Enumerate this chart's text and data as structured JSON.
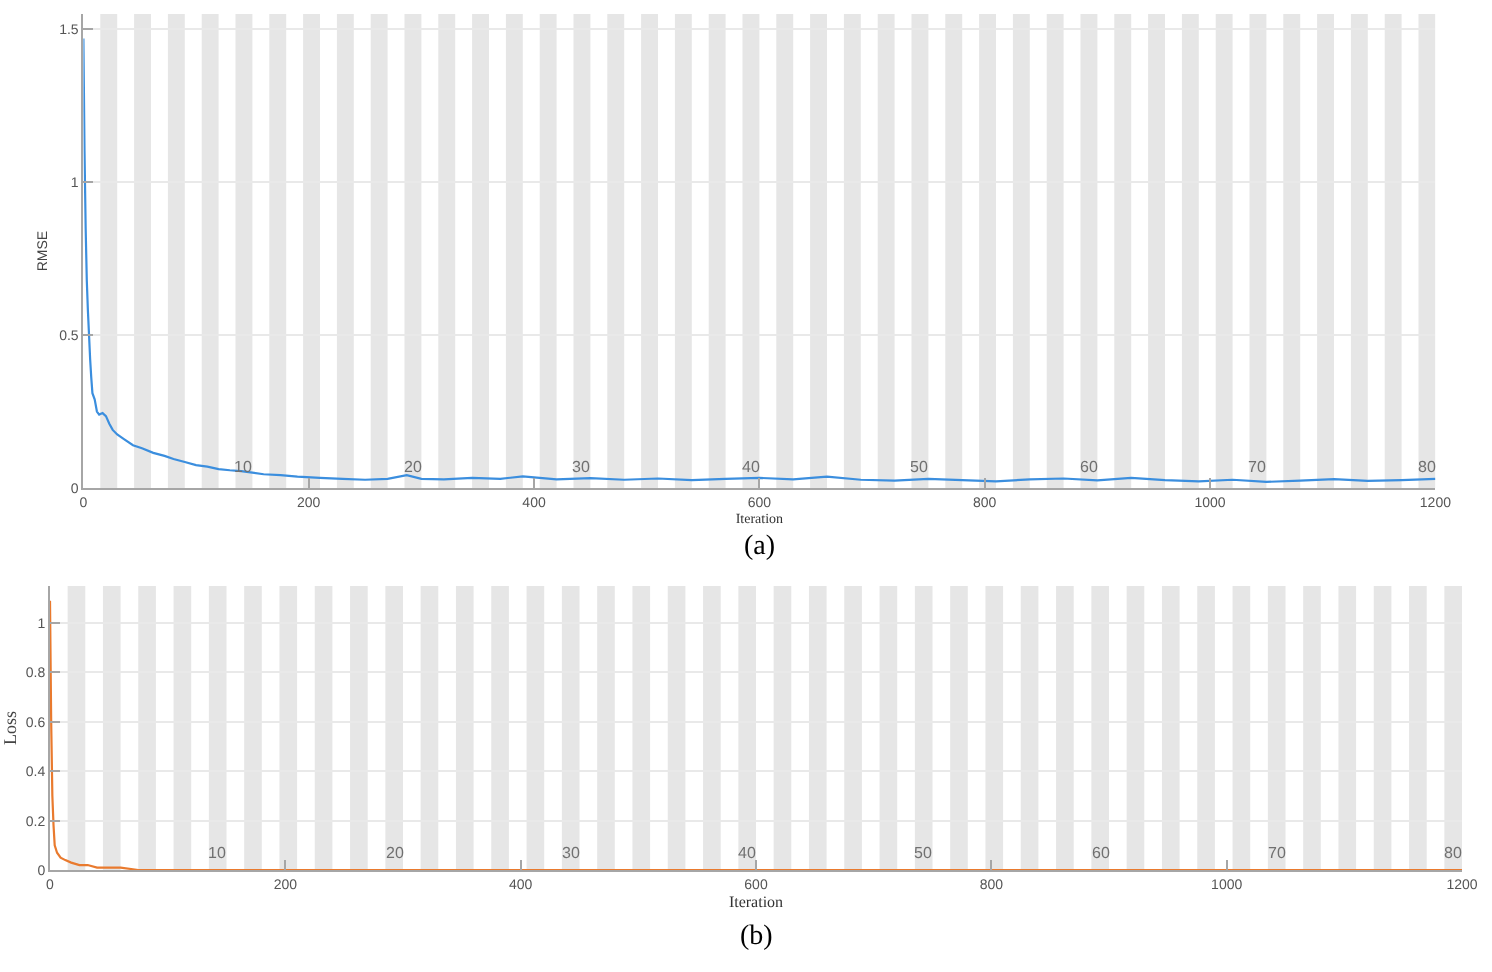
{
  "chart_data": [
    {
      "type": "line",
      "xlabel": "Iteration",
      "ylabel": "RMSE",
      "color": "#3b8ede",
      "x": [
        0,
        1,
        2,
        3,
        4,
        5,
        6,
        7,
        8,
        10,
        12,
        14,
        17,
        20,
        23,
        26,
        30,
        36,
        44,
        52,
        62,
        72,
        80,
        90,
        100,
        110,
        120,
        130,
        140,
        150,
        160,
        175,
        190,
        210,
        230,
        250,
        270,
        287,
        300,
        320,
        345,
        370,
        390,
        420,
        450,
        480,
        510,
        540,
        570,
        600,
        630,
        660,
        690,
        720,
        750,
        780,
        810,
        840,
        870,
        900,
        930,
        960,
        990,
        1020,
        1050,
        1080,
        1110,
        1140,
        1170,
        1200
      ],
      "values": [
        1.47,
        1.1,
        0.85,
        0.68,
        0.58,
        0.5,
        0.42,
        0.36,
        0.31,
        0.29,
        0.25,
        0.24,
        0.245,
        0.235,
        0.21,
        0.19,
        0.175,
        0.16,
        0.14,
        0.13,
        0.115,
        0.105,
        0.095,
        0.085,
        0.075,
        0.07,
        0.062,
        0.058,
        0.055,
        0.05,
        0.045,
        0.042,
        0.037,
        0.033,
        0.03,
        0.027,
        0.03,
        0.042,
        0.03,
        0.028,
        0.033,
        0.03,
        0.038,
        0.028,
        0.032,
        0.027,
        0.031,
        0.026,
        0.03,
        0.033,
        0.028,
        0.037,
        0.027,
        0.024,
        0.03,
        0.026,
        0.022,
        0.028,
        0.031,
        0.025,
        0.033,
        0.026,
        0.022,
        0.027,
        0.02,
        0.024,
        0.029,
        0.023,
        0.026,
        0.03
      ],
      "xlim": [
        0,
        1200
      ],
      "ylim": [
        0,
        1.55
      ],
      "xticks": [
        0,
        200,
        400,
        600,
        800,
        1000,
        1200
      ],
      "yticks": [
        0,
        0.5,
        1,
        1.5
      ],
      "grid": "y",
      "bands": [
        {
          "axis": "x",
          "from": 15,
          "to": 30,
          "color": "#e6e6e6"
        },
        {
          "axis": "x",
          "from": 45,
          "to": 60,
          "color": "#e6e6e6"
        },
        {
          "axis": "x",
          "from": 75,
          "to": 90,
          "color": "#e6e6e6"
        },
        {
          "axis": "x",
          "from": 105,
          "to": 120,
          "color": "#e6e6e6"
        },
        {
          "axis": "x",
          "from": 135,
          "to": 150,
          "color": "#e6e6e6",
          "label": "10"
        },
        {
          "axis": "x",
          "from": 165,
          "to": 180,
          "color": "#e6e6e6"
        },
        {
          "axis": "x",
          "from": 195,
          "to": 210,
          "color": "#e6e6e6"
        },
        {
          "axis": "x",
          "from": 225,
          "to": 240,
          "color": "#e6e6e6"
        },
        {
          "axis": "x",
          "from": 255,
          "to": 270,
          "color": "#e6e6e6"
        },
        {
          "axis": "x",
          "from": 285,
          "to": 300,
          "color": "#e6e6e6",
          "label": "20"
        },
        {
          "axis": "x",
          "from": 315,
          "to": 330,
          "color": "#e6e6e6"
        },
        {
          "axis": "x",
          "from": 345,
          "to": 360,
          "color": "#e6e6e6"
        },
        {
          "axis": "x",
          "from": 375,
          "to": 390,
          "color": "#e6e6e6"
        },
        {
          "axis": "x",
          "from": 405,
          "to": 420,
          "color": "#e6e6e6"
        },
        {
          "axis": "x",
          "from": 435,
          "to": 450,
          "color": "#e6e6e6",
          "label": "30"
        },
        {
          "axis": "x",
          "from": 465,
          "to": 480,
          "color": "#e6e6e6"
        },
        {
          "axis": "x",
          "from": 495,
          "to": 510,
          "color": "#e6e6e6"
        },
        {
          "axis": "x",
          "from": 525,
          "to": 540,
          "color": "#e6e6e6"
        },
        {
          "axis": "x",
          "from": 555,
          "to": 570,
          "color": "#e6e6e6"
        },
        {
          "axis": "x",
          "from": 585,
          "to": 600,
          "color": "#e6e6e6",
          "label": "40"
        },
        {
          "axis": "x",
          "from": 615,
          "to": 630,
          "color": "#e6e6e6"
        },
        {
          "axis": "x",
          "from": 645,
          "to": 660,
          "color": "#e6e6e6"
        },
        {
          "axis": "x",
          "from": 675,
          "to": 690,
          "color": "#e6e6e6"
        },
        {
          "axis": "x",
          "from": 705,
          "to": 720,
          "color": "#e6e6e6"
        },
        {
          "axis": "x",
          "from": 735,
          "to": 750,
          "color": "#e6e6e6",
          "label": "50"
        },
        {
          "axis": "x",
          "from": 765,
          "to": 780,
          "color": "#e6e6e6"
        },
        {
          "axis": "x",
          "from": 795,
          "to": 810,
          "color": "#e6e6e6"
        },
        {
          "axis": "x",
          "from": 825,
          "to": 840,
          "color": "#e6e6e6"
        },
        {
          "axis": "x",
          "from": 855,
          "to": 870,
          "color": "#e6e6e6"
        },
        {
          "axis": "x",
          "from": 885,
          "to": 900,
          "color": "#e6e6e6",
          "label": "60"
        },
        {
          "axis": "x",
          "from": 915,
          "to": 930,
          "color": "#e6e6e6"
        },
        {
          "axis": "x",
          "from": 945,
          "to": 960,
          "color": "#e6e6e6"
        },
        {
          "axis": "x",
          "from": 975,
          "to": 990,
          "color": "#e6e6e6"
        },
        {
          "axis": "x",
          "from": 1005,
          "to": 1020,
          "color": "#e6e6e6"
        },
        {
          "axis": "x",
          "from": 1035,
          "to": 1050,
          "color": "#e6e6e6",
          "label": "70"
        },
        {
          "axis": "x",
          "from": 1065,
          "to": 1080,
          "color": "#e6e6e6"
        },
        {
          "axis": "x",
          "from": 1095,
          "to": 1110,
          "color": "#e6e6e6"
        },
        {
          "axis": "x",
          "from": 1125,
          "to": 1140,
          "color": "#e6e6e6"
        },
        {
          "axis": "x",
          "from": 1155,
          "to": 1170,
          "color": "#e6e6e6"
        },
        {
          "axis": "x",
          "from": 1185,
          "to": 1200,
          "color": "#e6e6e6",
          "label": "80"
        }
      ],
      "annotations": [
        "(a)"
      ]
    },
    {
      "type": "line",
      "xlabel": "Iteration",
      "ylabel": "Loss",
      "color": "#e97a2e",
      "x": [
        0,
        1,
        2,
        3,
        4,
        6,
        9,
        13,
        18,
        25,
        32,
        40,
        50,
        60,
        75,
        100,
        150,
        200,
        400,
        600,
        800,
        1000,
        1200
      ],
      "values": [
        1.09,
        0.6,
        0.3,
        0.18,
        0.1,
        0.07,
        0.05,
        0.04,
        0.03,
        0.02,
        0.02,
        0.01,
        0.01,
        0.01,
        0,
        0,
        0,
        0,
        0,
        0,
        0,
        0,
        0
      ],
      "xlim": [
        0,
        1200
      ],
      "ylim": [
        0,
        1.15
      ],
      "xticks": [
        0,
        200,
        400,
        600,
        800,
        1000,
        1200
      ],
      "yticks": [
        0,
        0.2,
        0.4,
        0.6,
        0.8,
        1
      ],
      "grid": "y",
      "bands": [
        {
          "axis": "x",
          "from": 15,
          "to": 30,
          "color": "#e6e6e6"
        },
        {
          "axis": "x",
          "from": 45,
          "to": 60,
          "color": "#e6e6e6"
        },
        {
          "axis": "x",
          "from": 75,
          "to": 90,
          "color": "#e6e6e6"
        },
        {
          "axis": "x",
          "from": 105,
          "to": 120,
          "color": "#e6e6e6"
        },
        {
          "axis": "x",
          "from": 135,
          "to": 150,
          "color": "#e6e6e6",
          "label": "10"
        },
        {
          "axis": "x",
          "from": 165,
          "to": 180,
          "color": "#e6e6e6"
        },
        {
          "axis": "x",
          "from": 195,
          "to": 210,
          "color": "#e6e6e6"
        },
        {
          "axis": "x",
          "from": 225,
          "to": 240,
          "color": "#e6e6e6"
        },
        {
          "axis": "x",
          "from": 255,
          "to": 270,
          "color": "#e6e6e6"
        },
        {
          "axis": "x",
          "from": 285,
          "to": 300,
          "color": "#e6e6e6",
          "label": "20"
        },
        {
          "axis": "x",
          "from": 315,
          "to": 330,
          "color": "#e6e6e6"
        },
        {
          "axis": "x",
          "from": 345,
          "to": 360,
          "color": "#e6e6e6"
        },
        {
          "axis": "x",
          "from": 375,
          "to": 390,
          "color": "#e6e6e6"
        },
        {
          "axis": "x",
          "from": 405,
          "to": 420,
          "color": "#e6e6e6"
        },
        {
          "axis": "x",
          "from": 435,
          "to": 450,
          "color": "#e6e6e6",
          "label": "30"
        },
        {
          "axis": "x",
          "from": 465,
          "to": 480,
          "color": "#e6e6e6"
        },
        {
          "axis": "x",
          "from": 495,
          "to": 510,
          "color": "#e6e6e6"
        },
        {
          "axis": "x",
          "from": 525,
          "to": 540,
          "color": "#e6e6e6"
        },
        {
          "axis": "x",
          "from": 555,
          "to": 570,
          "color": "#e6e6e6"
        },
        {
          "axis": "x",
          "from": 585,
          "to": 600,
          "color": "#e6e6e6",
          "label": "40"
        },
        {
          "axis": "x",
          "from": 615,
          "to": 630,
          "color": "#e6e6e6"
        },
        {
          "axis": "x",
          "from": 645,
          "to": 660,
          "color": "#e6e6e6"
        },
        {
          "axis": "x",
          "from": 675,
          "to": 690,
          "color": "#e6e6e6"
        },
        {
          "axis": "x",
          "from": 705,
          "to": 720,
          "color": "#e6e6e6"
        },
        {
          "axis": "x",
          "from": 735,
          "to": 750,
          "color": "#e6e6e6",
          "label": "50"
        },
        {
          "axis": "x",
          "from": 765,
          "to": 780,
          "color": "#e6e6e6"
        },
        {
          "axis": "x",
          "from": 795,
          "to": 810,
          "color": "#e6e6e6"
        },
        {
          "axis": "x",
          "from": 825,
          "to": 840,
          "color": "#e6e6e6"
        },
        {
          "axis": "x",
          "from": 855,
          "to": 870,
          "color": "#e6e6e6"
        },
        {
          "axis": "x",
          "from": 885,
          "to": 900,
          "color": "#e6e6e6",
          "label": "60"
        },
        {
          "axis": "x",
          "from": 915,
          "to": 930,
          "color": "#e6e6e6"
        },
        {
          "axis": "x",
          "from": 945,
          "to": 960,
          "color": "#e6e6e6"
        },
        {
          "axis": "x",
          "from": 975,
          "to": 990,
          "color": "#e6e6e6"
        },
        {
          "axis": "x",
          "from": 1005,
          "to": 1020,
          "color": "#e6e6e6"
        },
        {
          "axis": "x",
          "from": 1035,
          "to": 1050,
          "color": "#e6e6e6",
          "label": "70"
        },
        {
          "axis": "x",
          "from": 1065,
          "to": 1080,
          "color": "#e6e6e6"
        },
        {
          "axis": "x",
          "from": 1095,
          "to": 1110,
          "color": "#e6e6e6"
        },
        {
          "axis": "x",
          "from": 1125,
          "to": 1140,
          "color": "#e6e6e6"
        },
        {
          "axis": "x",
          "from": 1155,
          "to": 1170,
          "color": "#e6e6e6"
        },
        {
          "axis": "x",
          "from": 1185,
          "to": 1200,
          "color": "#e6e6e6",
          "label": "80"
        }
      ],
      "annotations": [
        "(b)"
      ]
    }
  ]
}
